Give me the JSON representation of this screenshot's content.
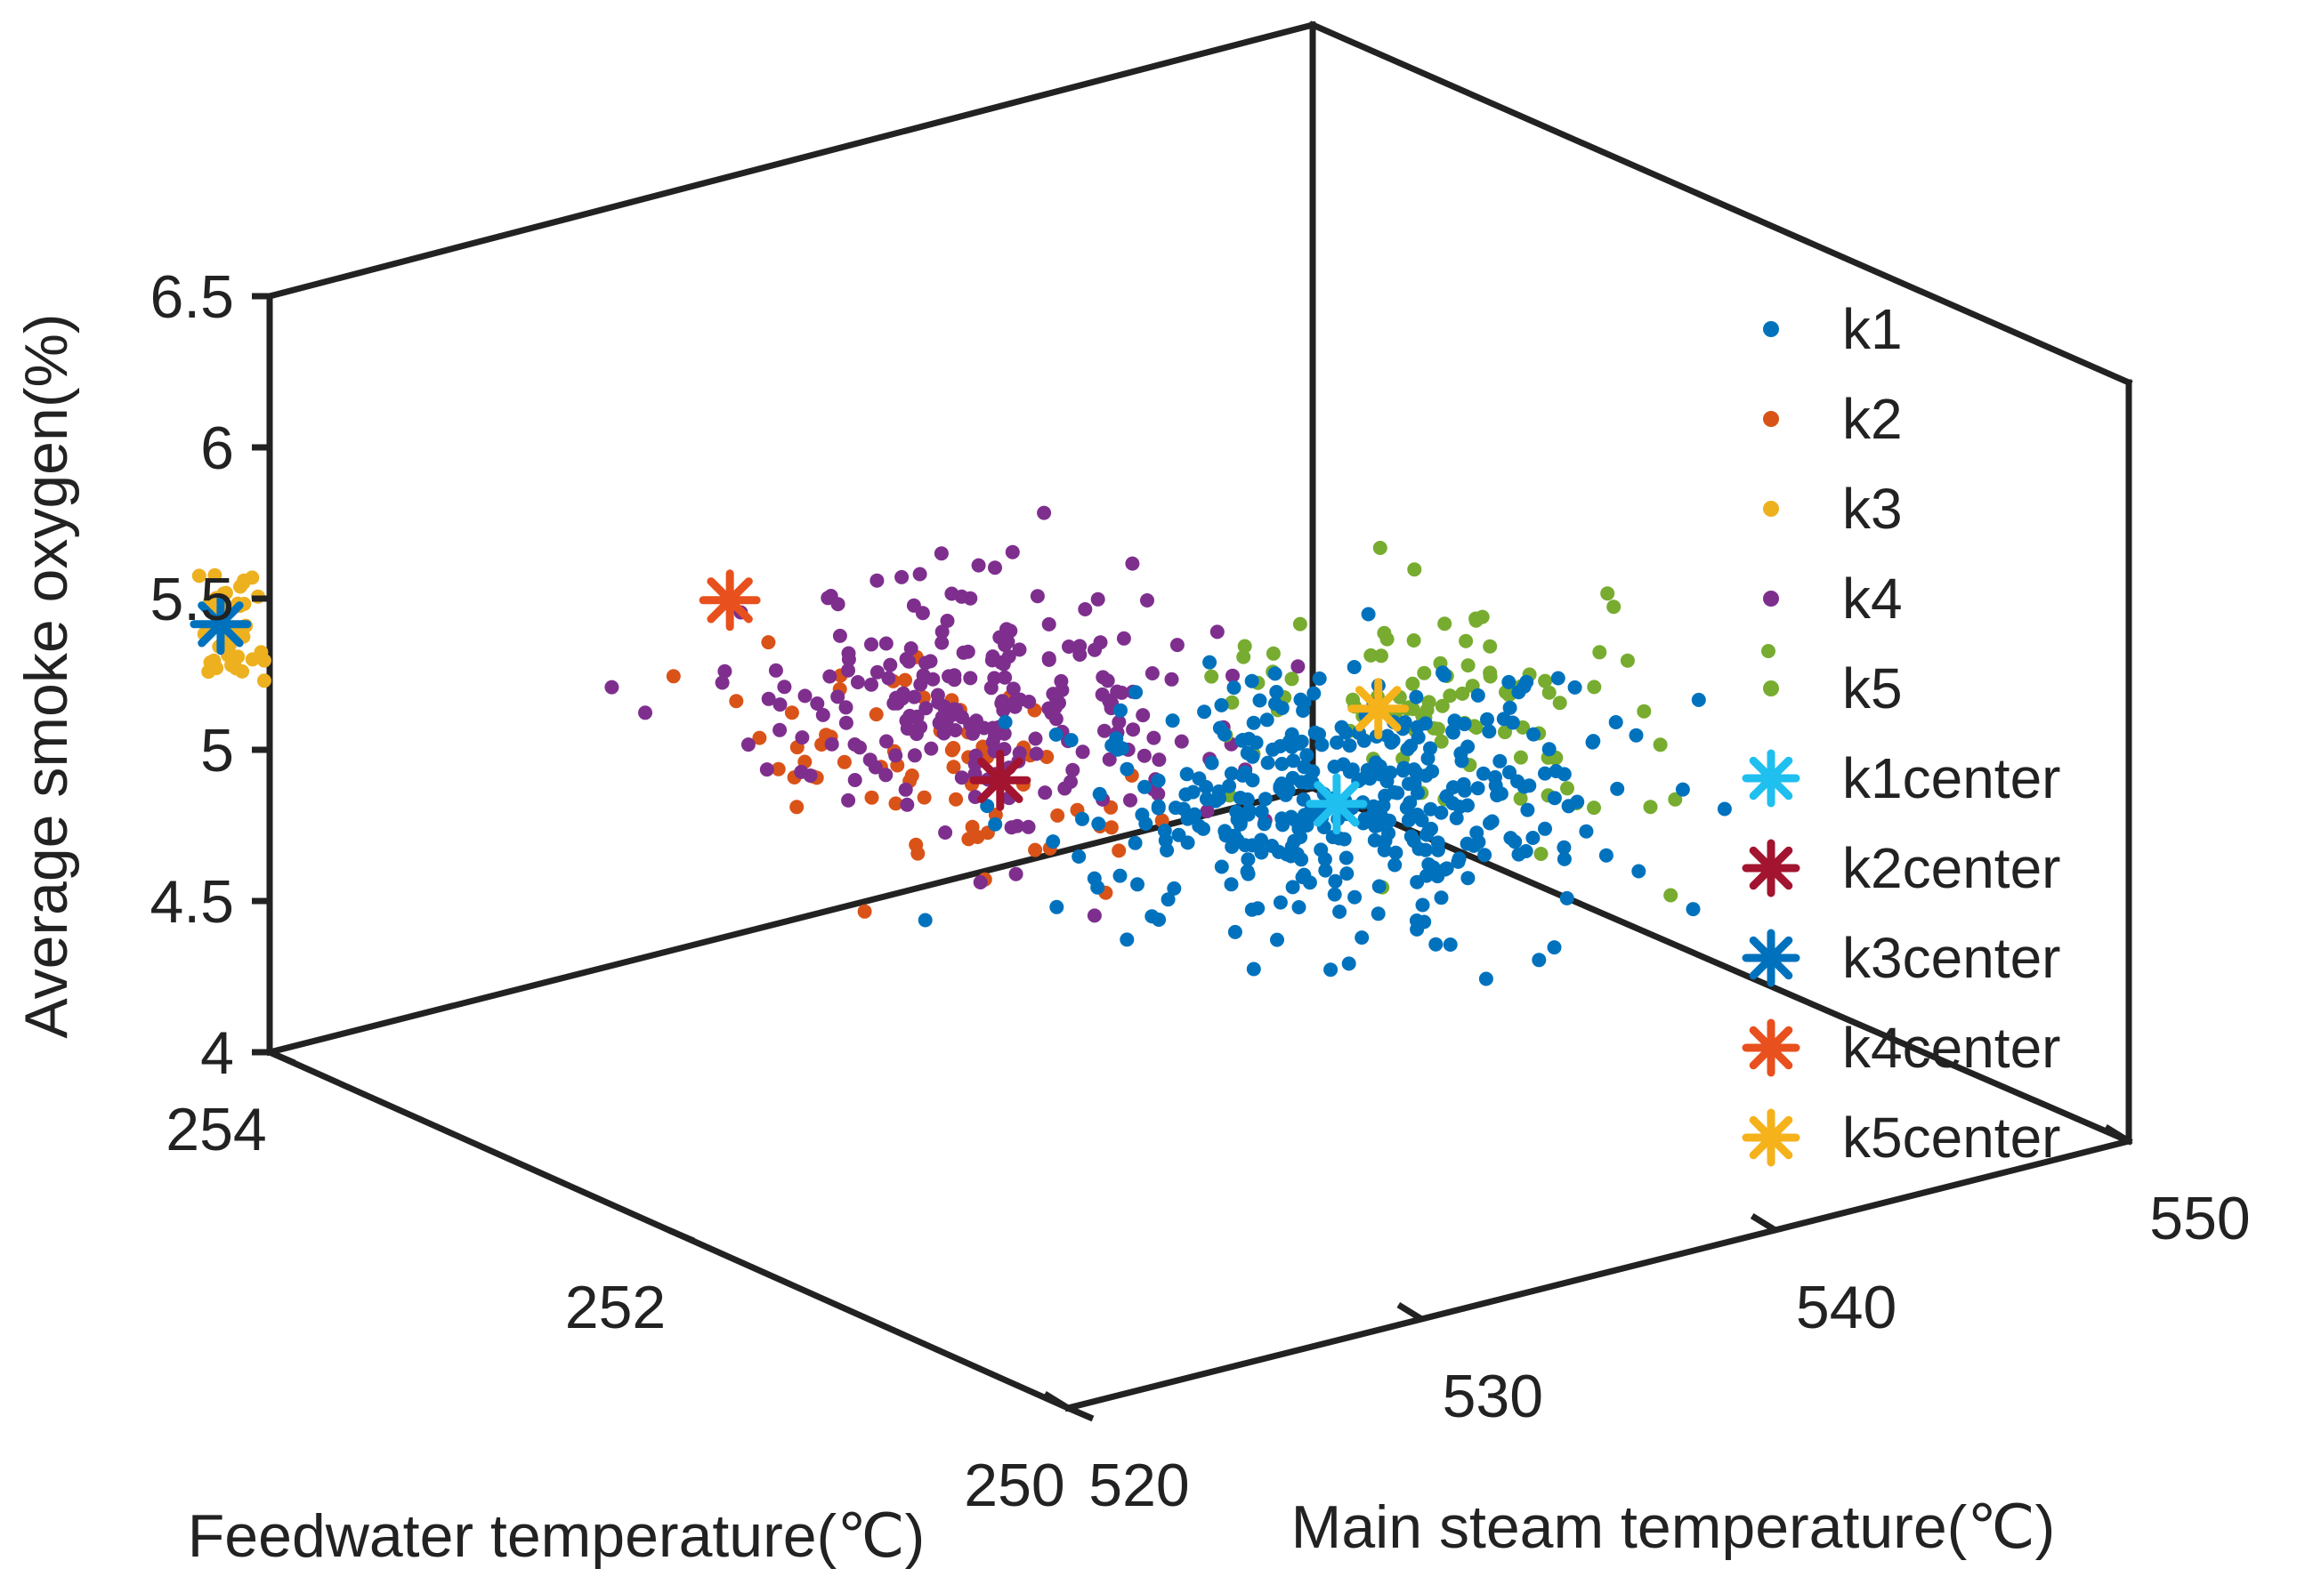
{
  "chart_data": {
    "type": "scatter",
    "title": "",
    "xlabel": "Main steam temperature(℃)",
    "ylabel": "Feedwater temperature(℃)",
    "zlabel": "Average smoke oxygen(%)",
    "xlim": [
      520,
      550
    ],
    "ylim": [
      250,
      254
    ],
    "zlim": [
      4,
      6.5
    ],
    "xticks": [
      "520",
      "530",
      "540",
      "550"
    ],
    "yticks": [
      "250",
      "252",
      "254"
    ],
    "zticks": [
      "4",
      "4.5",
      "5",
      "5.5",
      "6",
      "6.5"
    ],
    "grid": false,
    "legend_position": "right",
    "colors": {
      "k1": "#0072BD",
      "k2": "#D95319",
      "k3": "#EDB120",
      "k4": "#7E2F8E",
      "k5": "#77AC30",
      "k1center": "#1FBFEF",
      "k2center": "#A2142F",
      "k3center": "#0072BD",
      "k4center": "#E8501E",
      "k5center": "#F5B21B"
    },
    "legend": [
      "k1",
      "k2",
      "k3",
      "k4",
      "k5",
      "k1center",
      "k2center",
      "k3center",
      "k4center",
      "k5center"
    ],
    "centers": [
      {
        "name": "k1center",
        "x": 535.5,
        "y": 251.4,
        "z": 5.13
      },
      {
        "name": "k2center",
        "x": 530.5,
        "y": 252.2,
        "z": 5.12
      },
      {
        "name": "k3center",
        "x": 522.0,
        "y": 254.6,
        "z": 5.18
      },
      {
        "name": "k4center",
        "x": 528.5,
        "y": 253.2,
        "z": 5.48
      },
      {
        "name": "k5center",
        "x": 539.5,
        "y": 251.9,
        "z": 5.18
      }
    ],
    "clusters": [
      {
        "name": "k1",
        "cx": 535.5,
        "cy": 251.4,
        "cz": 5.13,
        "sx": 6.0,
        "sy": 0.8,
        "sz": 0.2,
        "count": 380
      },
      {
        "name": "k2",
        "cx": 530.0,
        "cy": 252.4,
        "cz": 5.1,
        "sx": 4.0,
        "sy": 0.9,
        "sz": 0.18,
        "count": 70
      },
      {
        "name": "k3",
        "cx": 522.2,
        "cy": 254.6,
        "cz": 5.18,
        "sx": 0.5,
        "sy": 0.15,
        "sz": 0.15,
        "count": 40
      },
      {
        "name": "k4",
        "cx": 531.0,
        "cy": 252.4,
        "cz": 5.3,
        "sx": 5.0,
        "sy": 0.8,
        "sz": 0.2,
        "count": 230
      },
      {
        "name": "k5",
        "cx": 539.0,
        "cy": 251.5,
        "cz": 5.3,
        "sx": 5.0,
        "sy": 0.7,
        "sz": 0.25,
        "count": 100
      }
    ]
  }
}
